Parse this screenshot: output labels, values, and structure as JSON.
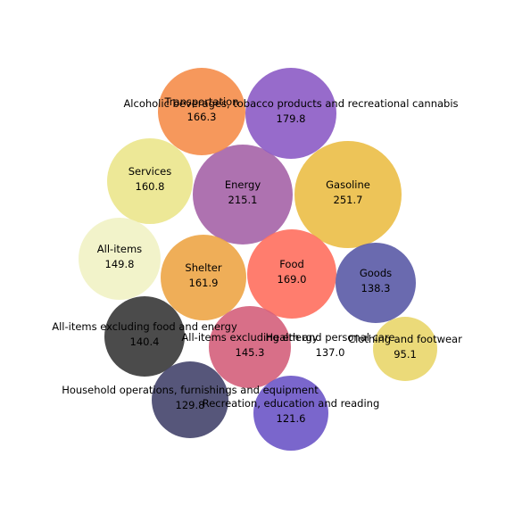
{
  "chart_data": {
    "type": "bubble",
    "items": [
      {
        "name": "Gasoline",
        "value": 251.7,
        "color": "#EBBE46"
      },
      {
        "name": "Energy",
        "value": 215.1,
        "color": "#A563A7"
      },
      {
        "name": "Alcoholic beverages, tobacco products and recreational cannabis",
        "value": 179.8,
        "color": "#8C5BC5"
      },
      {
        "name": "Food",
        "value": 169.0,
        "color": "#FF6F5E"
      },
      {
        "name": "Transportation",
        "value": 166.3,
        "color": "#F58D4A"
      },
      {
        "name": "Shelter",
        "value": 161.9,
        "color": "#EDA546"
      },
      {
        "name": "Services",
        "value": 160.8,
        "color": "#EBE68C"
      },
      {
        "name": "All-items",
        "value": 149.8,
        "color": "#F1F2C4"
      },
      {
        "name": "All-items excluding energy",
        "value": 145.3,
        "color": "#D45F7B"
      },
      {
        "name": "All-items excluding food and energy",
        "value": 140.4,
        "color": "#373737"
      },
      {
        "name": "Goods",
        "value": 138.3,
        "color": "#5A5AA6"
      },
      {
        "name": "Health and personal care",
        "value": 137.0,
        "color": "#FFFFFF"
      },
      {
        "name": "Household operations, furnishings and equipment",
        "value": 129.8,
        "color": "#44446C"
      },
      {
        "name": "Recreation, education and reading",
        "value": 121.6,
        "color": "#6C55C6"
      },
      {
        "name": "Clothing and footwear",
        "value": 95.1,
        "color": "#E9D66A"
      }
    ]
  }
}
